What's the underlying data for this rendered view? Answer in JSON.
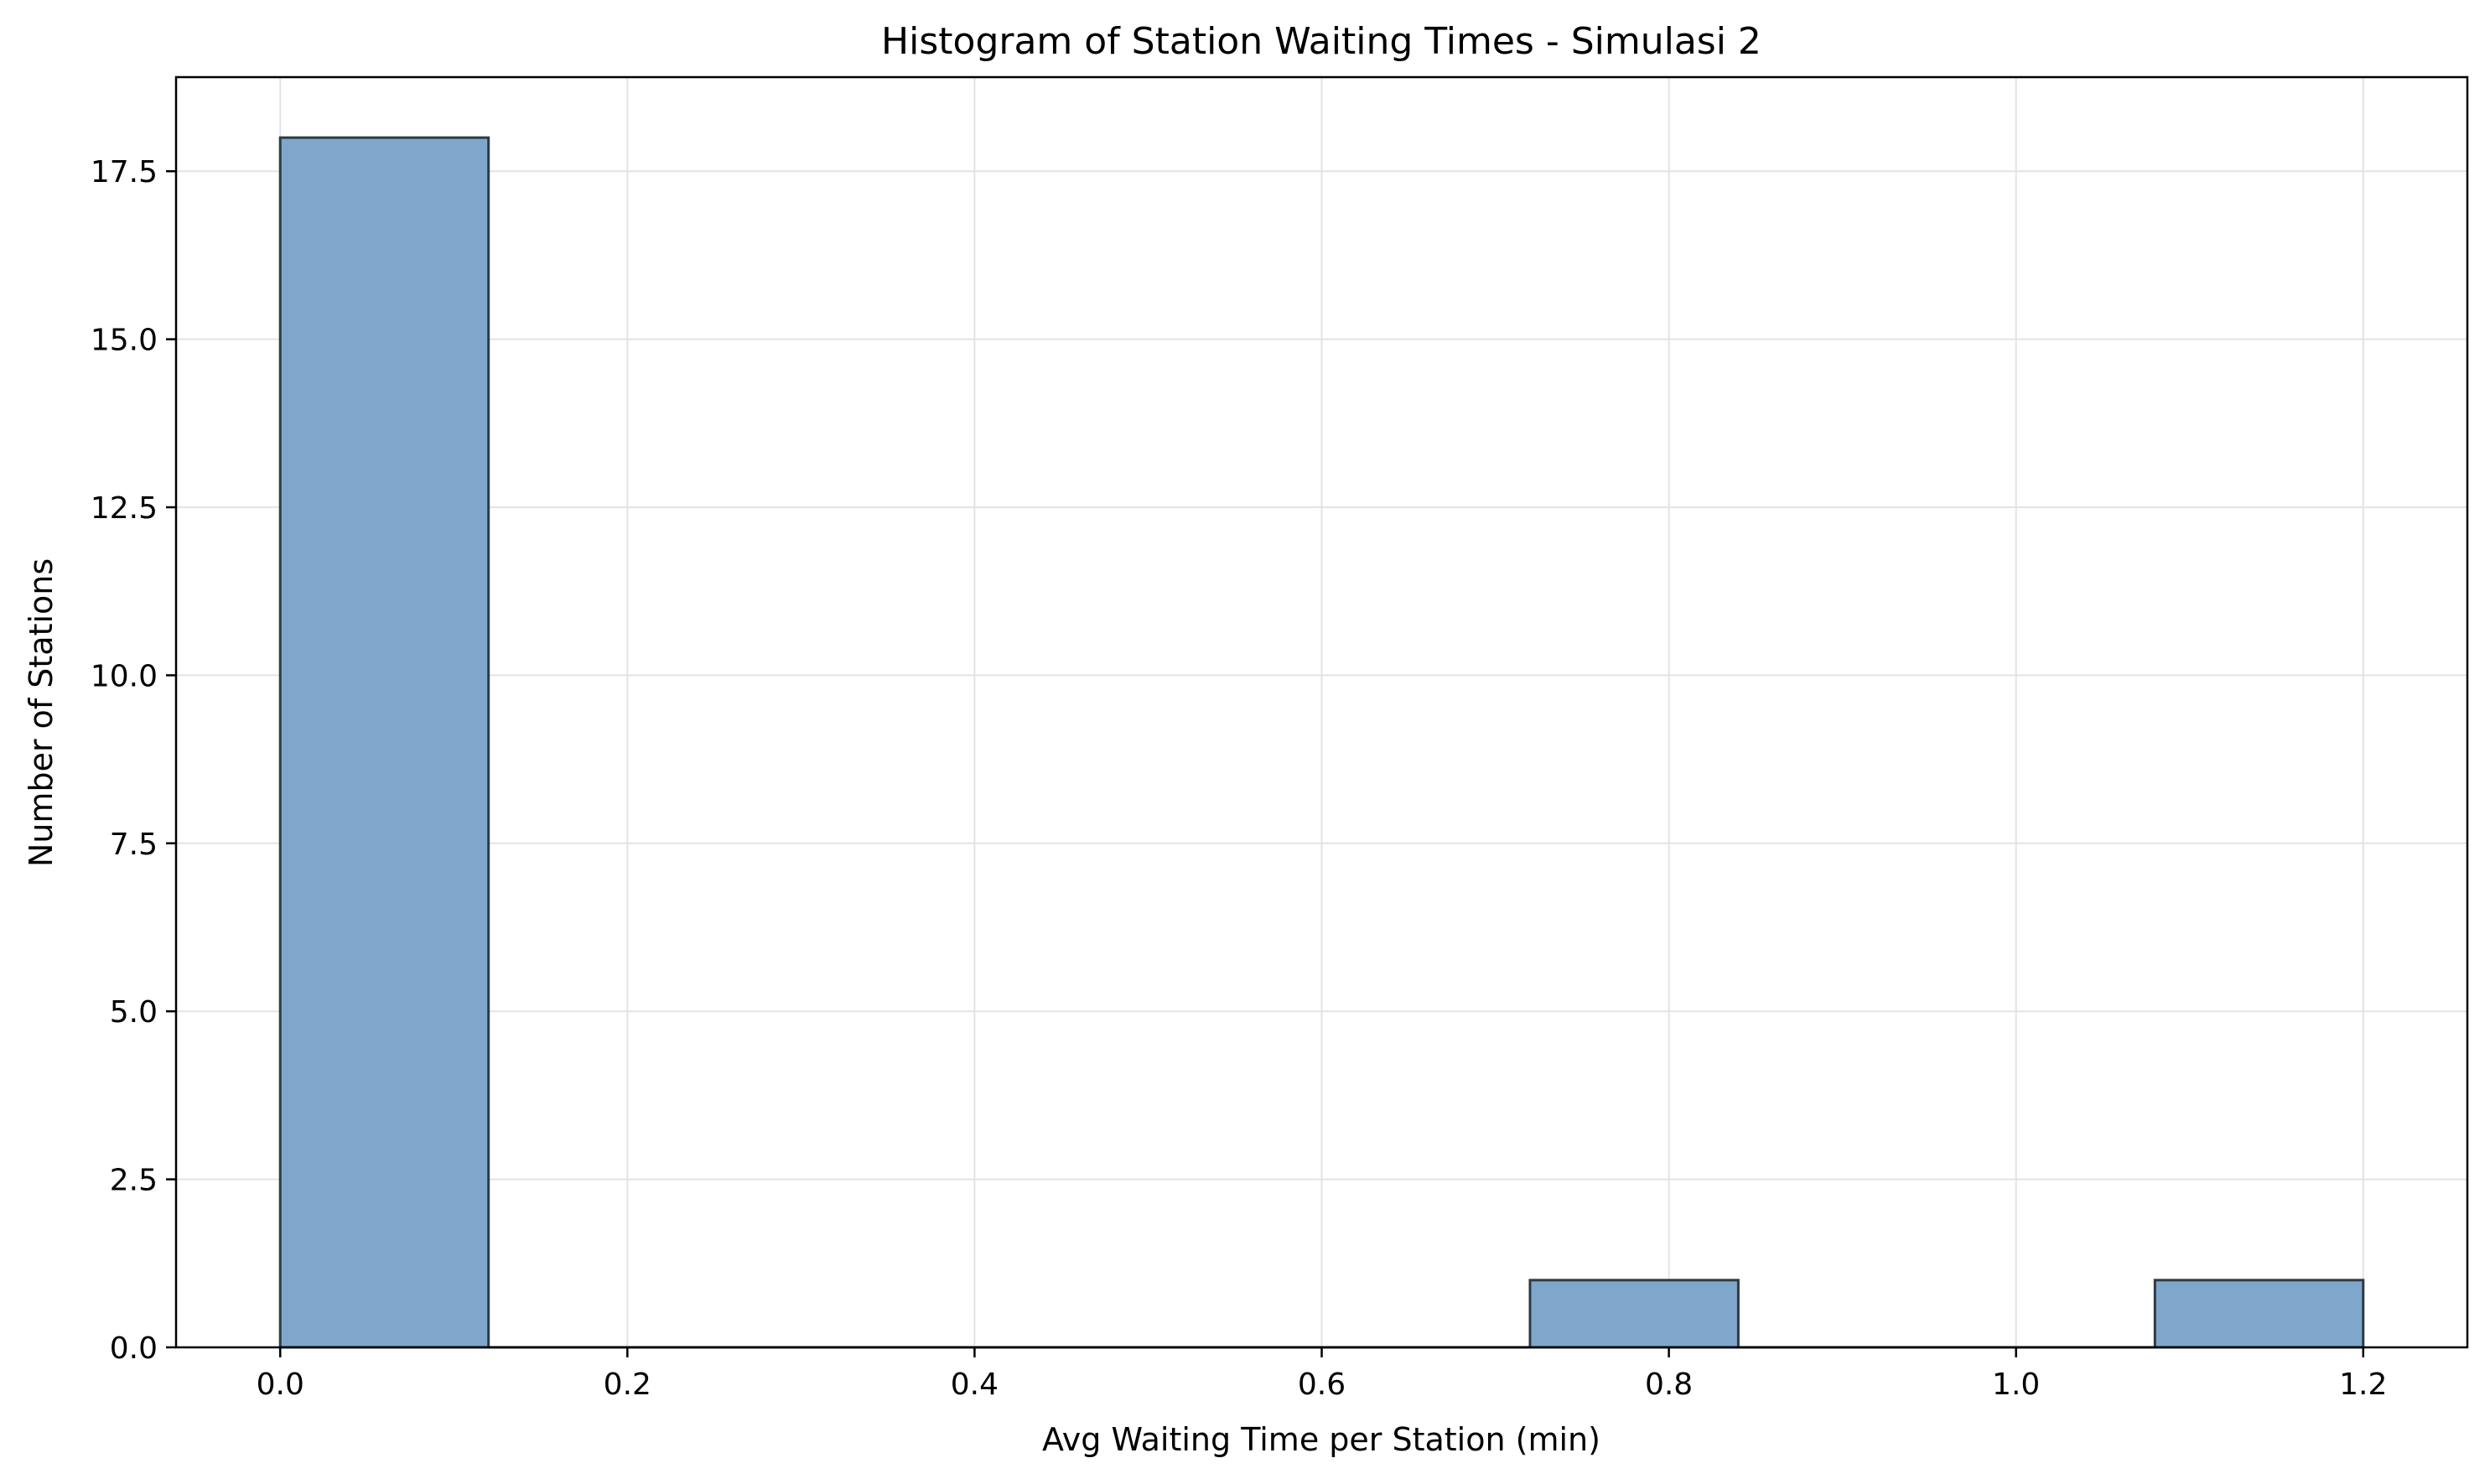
{
  "chart_data": {
    "type": "bar",
    "title": "Histogram of Station Waiting Times - Simulasi 2",
    "xlabel": "Avg Waiting Time per Station (min)",
    "ylabel": "Number of Stations",
    "xlim": [
      -0.06,
      1.26
    ],
    "ylim": [
      0,
      18.9
    ],
    "xticks": [
      0.0,
      0.2,
      0.4,
      0.6,
      0.8,
      1.0,
      1.2
    ],
    "xtick_labels": [
      "0.0",
      "0.2",
      "0.4",
      "0.6",
      "0.8",
      "1.0",
      "1.2"
    ],
    "yticks": [
      0.0,
      2.5,
      5.0,
      7.5,
      10.0,
      12.5,
      15.0,
      17.5
    ],
    "ytick_labels": [
      "0.0",
      "2.5",
      "5.0",
      "7.5",
      "10.0",
      "12.5",
      "15.0",
      "17.5"
    ],
    "bin_edges": [
      0.0,
      0.12,
      0.24,
      0.36,
      0.48,
      0.6,
      0.72,
      0.84,
      0.96,
      1.08,
      1.2
    ],
    "counts": [
      18,
      0,
      0,
      0,
      0,
      0,
      1,
      0,
      0,
      1
    ],
    "grid": true,
    "legend": "none",
    "colors": {
      "bar_fill": "#7ea7cb",
      "bar_edge": "#2f3a44",
      "grid": "#e3e3e3",
      "axes": "#000000"
    }
  }
}
